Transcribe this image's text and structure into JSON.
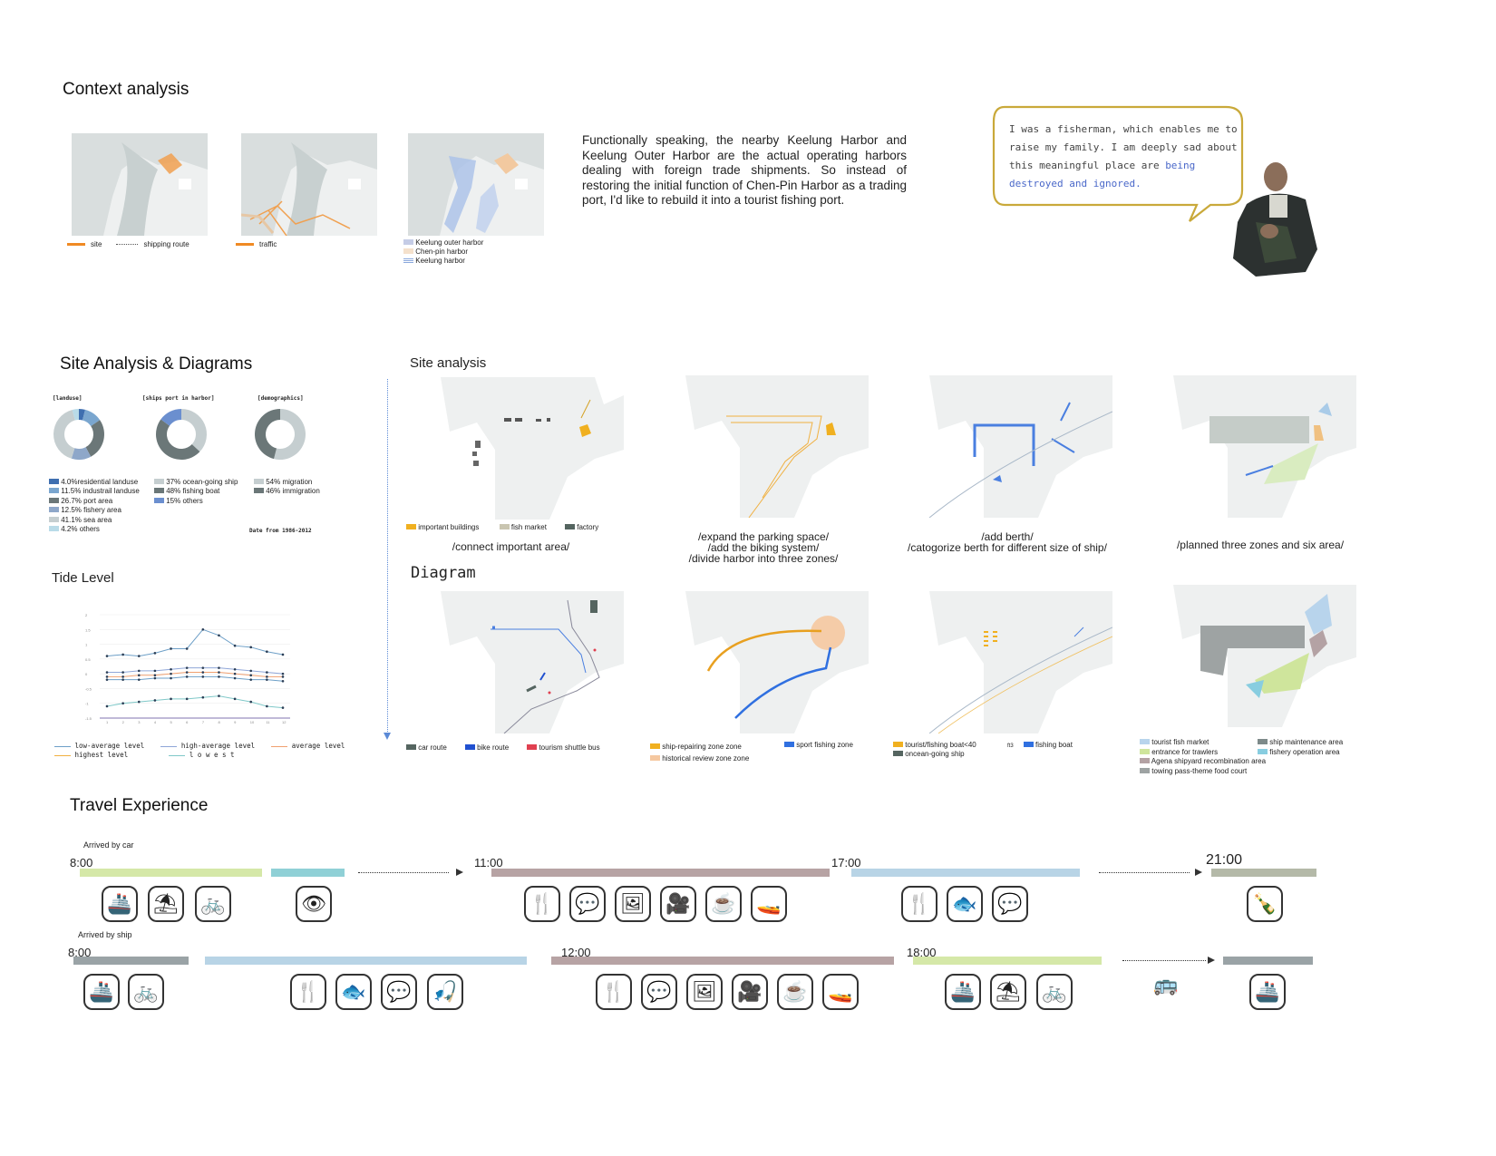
{
  "context": {
    "title": "Context analysis",
    "legend1": {
      "site": "site",
      "route": "shipping route"
    },
    "legend2": {
      "traffic": "traffic"
    },
    "legend3": [
      "Keelung outer harbor",
      "Chen-pin harbor",
      "Keelung harbor"
    ],
    "paragraph": "Functionally speaking, the nearby Keelung Harbor and Keelung Outer Harbor are the actual operating harbors dealing with foreign trade shipments. So instead of restoring the initial function of Chen-Pin Harbor as a trading port, I'd like to rebuild it into a tourist fishing port.",
    "quote_normal": "I was a fisherman, which enables me to raise my family. I am deeply sad about this meaningful place are ",
    "quote_highlight": "being destroyed and ignored."
  },
  "site_diagrams": {
    "title": "Site Analysis & Diagrams",
    "donuts": [
      {
        "label": "[landuse]",
        "slices": [
          4.0,
          11.5,
          26.7,
          12.5,
          41.1,
          4.2
        ],
        "colors": [
          "#3f6fb0",
          "#7aa6cf",
          "#6b7778",
          "#8ea7c9",
          "#c5ced0",
          "#b9dbe8"
        ]
      },
      {
        "label": "[ships port in harbor]",
        "slices": [
          37,
          48,
          15
        ],
        "colors": [
          "#c5ced0",
          "#6b7778",
          "#6b8fcf"
        ]
      },
      {
        "label": "[demographics]",
        "slices": [
          54,
          46
        ],
        "colors": [
          "#c5ced0",
          "#6b7778"
        ]
      }
    ],
    "legend_landuse": [
      "4.0%residential landuse",
      "11.5% industrail landuse",
      "26.7% port area",
      "12.5% fishery area",
      "41.1% sea area",
      "4.2% others"
    ],
    "legend_ships": [
      "37% ocean-going ship",
      "48% fishing boat",
      "15% others"
    ],
    "legend_demo": [
      "54% migration",
      "46% immigration"
    ],
    "date_note": "Date from 1986-2012"
  },
  "tide": {
    "title": "Tide Level",
    "legend": [
      "low-average level",
      "high-average level",
      "average level",
      "highest level",
      "l o w e s t"
    ]
  },
  "chart_data": {
    "type": "line",
    "title": "Tide Level",
    "x": [
      1,
      2,
      3,
      4,
      5,
      6,
      7,
      8,
      9,
      10,
      11,
      12
    ],
    "ylim": [
      -1.5,
      2
    ],
    "yticks": [
      "2",
      "1.5",
      "1",
      "0.5",
      "0",
      "-0.5",
      "-1",
      "-1.5"
    ],
    "series": [
      {
        "name": "highest level",
        "values": [
          0.6,
          0.65,
          0.6,
          0.7,
          0.85,
          0.85,
          1.5,
          1.3,
          0.95,
          0.9,
          0.75,
          0.65
        ],
        "color": "#6d9fc7"
      },
      {
        "name": "high-average level",
        "values": [
          0.05,
          0.05,
          0.1,
          0.1,
          0.15,
          0.2,
          0.2,
          0.2,
          0.15,
          0.1,
          0.05,
          0.0
        ],
        "color": "#8fa6d8"
      },
      {
        "name": "average level",
        "values": [
          -0.1,
          -0.1,
          -0.05,
          -0.05,
          0.0,
          0.05,
          0.05,
          0.05,
          0.0,
          -0.05,
          -0.1,
          -0.1
        ],
        "color": "#f0a070"
      },
      {
        "name": "low-average level",
        "values": [
          -0.2,
          -0.2,
          -0.2,
          -0.15,
          -0.15,
          -0.1,
          -0.1,
          -0.1,
          -0.15,
          -0.2,
          -0.2,
          -0.25
        ],
        "color": "#6d9fc7"
      },
      {
        "name": "l o w e s t",
        "values": [
          -1.1,
          -1.0,
          -0.95,
          -0.9,
          -0.85,
          -0.85,
          -0.8,
          -0.75,
          -0.85,
          -0.95,
          -1.1,
          -1.15
        ],
        "color": "#7fc8c8"
      }
    ]
  },
  "site_analysis": {
    "title": "Site analysis",
    "legend": [
      "important buildings",
      "fish market",
      "factory"
    ],
    "captions": [
      "/connect important area/",
      "/expand the parking space/\n/add the biking system/\n/divide harbor into three zones/",
      "/add berth/\n/catogorize berth for different size of ship/",
      "/planned three zones and six area/"
    ]
  },
  "diagram": {
    "title": "Diagram",
    "legend1": [
      "car route",
      "bike route",
      "tourism shuttle bus"
    ],
    "legend2": [
      "ship-repairing zone zone",
      "historical review zone zone",
      "sport fishing zone"
    ],
    "legend3": [
      "tourist/fishing boat<40",
      "oncean-going ship",
      "fishing boat"
    ],
    "legend3_mark": "ft3",
    "legend4": [
      "tourist fish market",
      "entrance for trawlers",
      "Agena shipyard recombination area",
      "towing pass-theme food court",
      "ship maintenance area",
      "fishery operation area"
    ]
  },
  "travel": {
    "title": "Travel Experience",
    "car_label": "Arrived by car",
    "ship_label": "Arrived by ship",
    "car_times": [
      "8:00",
      "11:00",
      "17:00",
      "21:00"
    ],
    "ship_times": [
      "8:00",
      "12:00",
      "18:00"
    ],
    "icons": [
      "ship-icon",
      "relax-icon",
      "bike-icon",
      "eye-icon",
      "food-pin-icon",
      "chat-icon",
      "exhibit-icon",
      "camera-icon",
      "coffee-icon",
      "boat-icon",
      "fish-icon",
      "bottle-icon",
      "fishing-icon",
      "bus-icon"
    ]
  }
}
